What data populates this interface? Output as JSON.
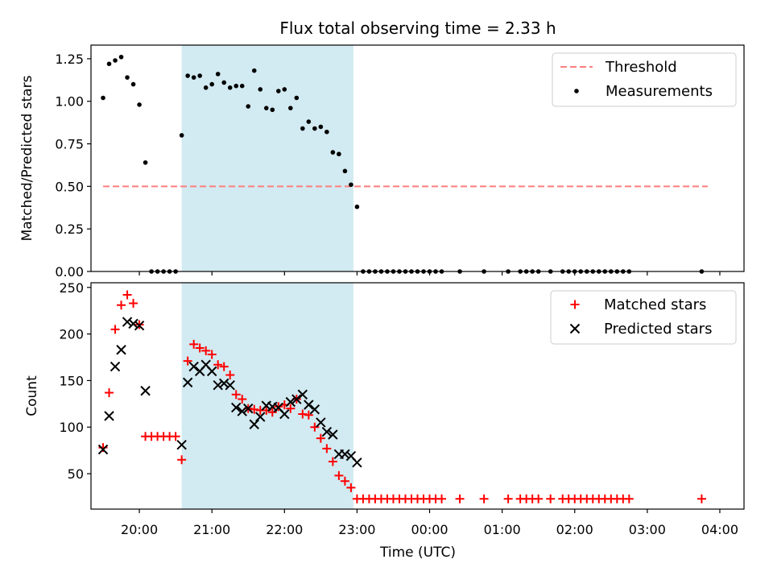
{
  "figure": {
    "title": "Flux total observing time = 2.33 h",
    "xlabel": "Time (UTC)"
  },
  "chart_data": [
    {
      "type": "scatter",
      "panel": "top",
      "ylabel": "Matched/Predicted stars",
      "ylim": [
        0,
        1.33
      ],
      "yticks": [
        "0.00",
        "0.25",
        "0.50",
        "0.75",
        "1.00",
        "1.25"
      ],
      "xlim": [
        "19:20",
        "04:20"
      ],
      "xticks": [
        "20:00",
        "21:00",
        "22:00",
        "23:00",
        "00:00",
        "01:00",
        "02:00",
        "03:00",
        "04:00"
      ],
      "highlight_span": {
        "start": "20:35",
        "end": "22:57",
        "color": "#add8e6"
      },
      "threshold": {
        "name": "Threshold",
        "value": 0.5,
        "x_start": "19:30",
        "x_end": "03:50",
        "color": "#ff7f7f",
        "style": "dashed"
      },
      "legend_position": "upper right",
      "series": [
        {
          "name": "Measurements",
          "color": "#000000",
          "marker": "dot",
          "x": [
            "19:30",
            "19:35",
            "19:40",
            "19:45",
            "19:50",
            "19:55",
            "20:00",
            "20:05",
            "20:10",
            "20:15",
            "20:20",
            "20:25",
            "20:30",
            "20:35",
            "20:40",
            "20:45",
            "20:50",
            "20:55",
            "21:00",
            "21:05",
            "21:10",
            "21:15",
            "21:20",
            "21:25",
            "21:30",
            "21:35",
            "21:40",
            "21:45",
            "21:50",
            "21:55",
            "22:00",
            "22:05",
            "22:10",
            "22:15",
            "22:20",
            "22:25",
            "22:30",
            "22:35",
            "22:40",
            "22:45",
            "22:50",
            "22:55",
            "23:00",
            "23:05",
            "23:10",
            "23:15",
            "23:20",
            "23:25",
            "23:30",
            "23:35",
            "23:40",
            "23:45",
            "23:50",
            "23:55",
            "00:00",
            "00:05",
            "00:10",
            "00:25",
            "00:45",
            "01:05",
            "01:15",
            "01:20",
            "01:25",
            "01:30",
            "01:40",
            "01:50",
            "01:55",
            "02:00",
            "02:05",
            "02:10",
            "02:15",
            "02:20",
            "02:25",
            "02:30",
            "02:35",
            "02:40",
            "02:45",
            "03:45"
          ],
          "y": [
            1.02,
            1.22,
            1.24,
            1.26,
            1.14,
            1.1,
            0.98,
            0.64,
            0,
            0,
            0,
            0,
            0,
            0.8,
            1.15,
            1.14,
            1.15,
            1.08,
            1.1,
            1.16,
            1.11,
            1.08,
            1.09,
            1.09,
            0.97,
            1.18,
            1.07,
            0.96,
            0.95,
            1.06,
            1.07,
            0.96,
            1.02,
            0.84,
            0.88,
            0.84,
            0.85,
            0.82,
            0.7,
            0.69,
            0.59,
            0.51,
            0.38,
            0,
            0,
            0,
            0,
            0,
            0,
            0,
            0,
            0,
            0,
            0,
            0,
            0,
            0,
            0,
            0,
            0,
            0,
            0,
            0,
            0,
            0,
            0,
            0,
            0,
            0,
            0,
            0,
            0,
            0,
            0,
            0,
            0,
            0,
            0
          ]
        }
      ]
    },
    {
      "type": "scatter",
      "panel": "bottom",
      "ylabel": "Count",
      "ylim": [
        12,
        255
      ],
      "yticks": [
        "50",
        "100",
        "150",
        "200",
        "250"
      ],
      "xlim": [
        "19:20",
        "04:20"
      ],
      "xticks": [
        "20:00",
        "21:00",
        "22:00",
        "23:00",
        "00:00",
        "01:00",
        "02:00",
        "03:00",
        "04:00"
      ],
      "highlight_span": {
        "start": "20:35",
        "end": "22:57",
        "color": "#add8e6"
      },
      "legend_position": "upper right",
      "series": [
        {
          "name": "Matched stars",
          "color": "#ff0000",
          "marker": "plus",
          "x": [
            "19:30",
            "19:35",
            "19:40",
            "19:45",
            "19:50",
            "19:55",
            "20:00",
            "20:05",
            "20:10",
            "20:15",
            "20:20",
            "20:25",
            "20:30",
            "20:35",
            "20:40",
            "20:45",
            "20:50",
            "20:55",
            "21:00",
            "21:05",
            "21:10",
            "21:15",
            "21:20",
            "21:25",
            "21:30",
            "21:35",
            "21:40",
            "21:45",
            "21:50",
            "21:55",
            "22:00",
            "22:05",
            "22:10",
            "22:15",
            "22:20",
            "22:25",
            "22:30",
            "22:35",
            "22:40",
            "22:45",
            "22:50",
            "22:55",
            "23:00",
            "23:05",
            "23:10",
            "23:15",
            "23:20",
            "23:25",
            "23:30",
            "23:35",
            "23:40",
            "23:45",
            "23:50",
            "23:55",
            "00:00",
            "00:05",
            "00:10",
            "00:25",
            "00:45",
            "01:05",
            "01:15",
            "01:20",
            "01:25",
            "01:30",
            "01:40",
            "01:50",
            "01:55",
            "02:00",
            "02:05",
            "02:10",
            "02:15",
            "02:20",
            "02:25",
            "02:30",
            "02:35",
            "02:40",
            "02:45",
            "03:45"
          ],
          "y": [
            78,
            137,
            205,
            231,
            242,
            233,
            210,
            90,
            90,
            90,
            90,
            90,
            90,
            65,
            171,
            189,
            185,
            182,
            178,
            167,
            165,
            156,
            135,
            130,
            120,
            119,
            118,
            118,
            116,
            122,
            124,
            120,
            130,
            114,
            113,
            100,
            88,
            77,
            63,
            48,
            42,
            35,
            23,
            23,
            23,
            23,
            23,
            23,
            23,
            23,
            23,
            23,
            23,
            23,
            23,
            23,
            23,
            23,
            23,
            23,
            23,
            23,
            23,
            23,
            23,
            23,
            23,
            23,
            23,
            23,
            23,
            23,
            23,
            23,
            23,
            23,
            23,
            23
          ]
        },
        {
          "name": "Predicted stars",
          "color": "#000000",
          "marker": "x",
          "x": [
            "19:30",
            "19:35",
            "19:40",
            "19:45",
            "19:50",
            "19:55",
            "20:00",
            "20:05",
            "20:35",
            "20:40",
            "20:45",
            "20:50",
            "20:55",
            "21:00",
            "21:05",
            "21:10",
            "21:15",
            "21:20",
            "21:25",
            "21:30",
            "21:35",
            "21:40",
            "21:45",
            "21:50",
            "21:55",
            "22:00",
            "22:05",
            "22:10",
            "22:15",
            "22:20",
            "22:25",
            "22:30",
            "22:35",
            "22:40",
            "22:45",
            "22:50",
            "22:55",
            "23:00"
          ],
          "y": [
            76,
            112,
            165,
            183,
            213,
            211,
            209,
            139,
            81,
            148,
            165,
            160,
            167,
            160,
            145,
            147,
            145,
            121,
            117,
            120,
            103,
            111,
            123,
            122,
            121,
            114,
            127,
            130,
            135,
            124,
            119,
            105,
            95,
            92,
            71,
            71,
            69,
            62
          ]
        }
      ]
    }
  ]
}
